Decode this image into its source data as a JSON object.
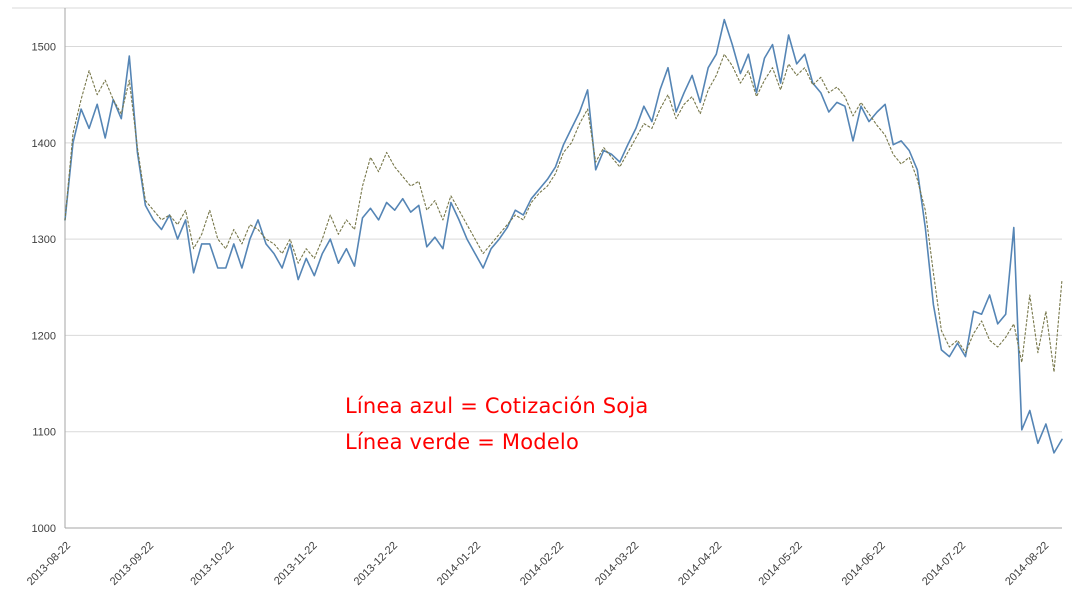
{
  "figure": {
    "background": "#ffffff"
  },
  "annotations": {
    "line1": "Línea azul = Cotización Soja",
    "line2": "Línea verde = Modelo"
  },
  "colors": {
    "blue_line": "#5585b5",
    "green_line": "#77774a",
    "annotation": "#ff0000",
    "grid": "#d9d9d9",
    "axis": "#a6a6a6",
    "tick_text": "#3f3f3f"
  },
  "chart_data": {
    "type": "line",
    "title": "",
    "xlabel": "",
    "ylabel": "",
    "legend": "none (identified via red in-plot annotations)",
    "grid": "horizontal",
    "ylim": [
      1000,
      1540
    ],
    "yticks": [
      1000,
      1100,
      1200,
      1300,
      1400,
      1500
    ],
    "x_span_days": 372,
    "x_step_days": 3,
    "xtick_days": [
      0,
      31,
      61,
      92,
      122,
      153,
      184,
      212,
      243,
      273,
      304,
      334,
      365
    ],
    "xtick_labels": [
      "2013-08-22",
      "2013-09-22",
      "2013-10-22",
      "2013-11-22",
      "2013-12-22",
      "2014-01-22",
      "2014-02-22",
      "2014-03-22",
      "2014-04-22",
      "2014-05-22",
      "2014-06-22",
      "2014-07-22",
      "2014-08-22"
    ],
    "series": [
      {
        "name": "Cotización Soja",
        "color_key": "blue_line",
        "style": "solid",
        "values": [
          1320,
          1400,
          1435,
          1415,
          1440,
          1405,
          1445,
          1425,
          1490,
          1390,
          1335,
          1320,
          1310,
          1325,
          1300,
          1320,
          1265,
          1295,
          1295,
          1270,
          1270,
          1295,
          1270,
          1300,
          1320,
          1295,
          1285,
          1270,
          1295,
          1258,
          1280,
          1262,
          1285,
          1300,
          1275,
          1290,
          1272,
          1322,
          1332,
          1320,
          1338,
          1330,
          1342,
          1328,
          1335,
          1292,
          1302,
          1290,
          1338,
          1320,
          1300,
          1285,
          1270,
          1290,
          1300,
          1312,
          1330,
          1325,
          1342,
          1352,
          1362,
          1375,
          1398,
          1415,
          1432,
          1455,
          1372,
          1392,
          1388,
          1380,
          1398,
          1415,
          1438,
          1422,
          1455,
          1478,
          1432,
          1452,
          1470,
          1442,
          1478,
          1492,
          1528,
          1502,
          1472,
          1492,
          1452,
          1488,
          1502,
          1462,
          1512,
          1482,
          1492,
          1462,
          1452,
          1432,
          1442,
          1438,
          1402,
          1438,
          1422,
          1432,
          1440,
          1398,
          1402,
          1392,
          1372,
          1312,
          1232,
          1185,
          1178,
          1192,
          1178,
          1225,
          1222,
          1242,
          1212,
          1222,
          1312,
          1102,
          1122,
          1088,
          1108,
          1078,
          1092
        ]
      },
      {
        "name": "Modelo",
        "color_key": "green_line",
        "style": "dotted",
        "values": [
          1320,
          1410,
          1445,
          1475,
          1450,
          1465,
          1445,
          1430,
          1465,
          1395,
          1340,
          1330,
          1320,
          1325,
          1315,
          1330,
          1290,
          1305,
          1330,
          1300,
          1290,
          1310,
          1295,
          1315,
          1310,
          1300,
          1295,
          1285,
          1300,
          1275,
          1290,
          1280,
          1300,
          1325,
          1305,
          1320,
          1310,
          1355,
          1385,
          1370,
          1390,
          1375,
          1365,
          1355,
          1360,
          1330,
          1340,
          1320,
          1345,
          1330,
          1315,
          1300,
          1285,
          1295,
          1305,
          1315,
          1325,
          1320,
          1338,
          1348,
          1355,
          1368,
          1390,
          1400,
          1420,
          1435,
          1380,
          1395,
          1385,
          1375,
          1390,
          1405,
          1420,
          1415,
          1435,
          1450,
          1425,
          1440,
          1448,
          1430,
          1455,
          1470,
          1492,
          1480,
          1462,
          1475,
          1448,
          1465,
          1478,
          1455,
          1482,
          1470,
          1478,
          1460,
          1468,
          1452,
          1458,
          1448,
          1428,
          1442,
          1430,
          1418,
          1408,
          1388,
          1378,
          1385,
          1362,
          1330,
          1265,
          1205,
          1188,
          1195,
          1182,
          1202,
          1215,
          1195,
          1188,
          1198,
          1212,
          1172,
          1242,
          1182,
          1225,
          1162,
          1258
        ]
      }
    ]
  }
}
